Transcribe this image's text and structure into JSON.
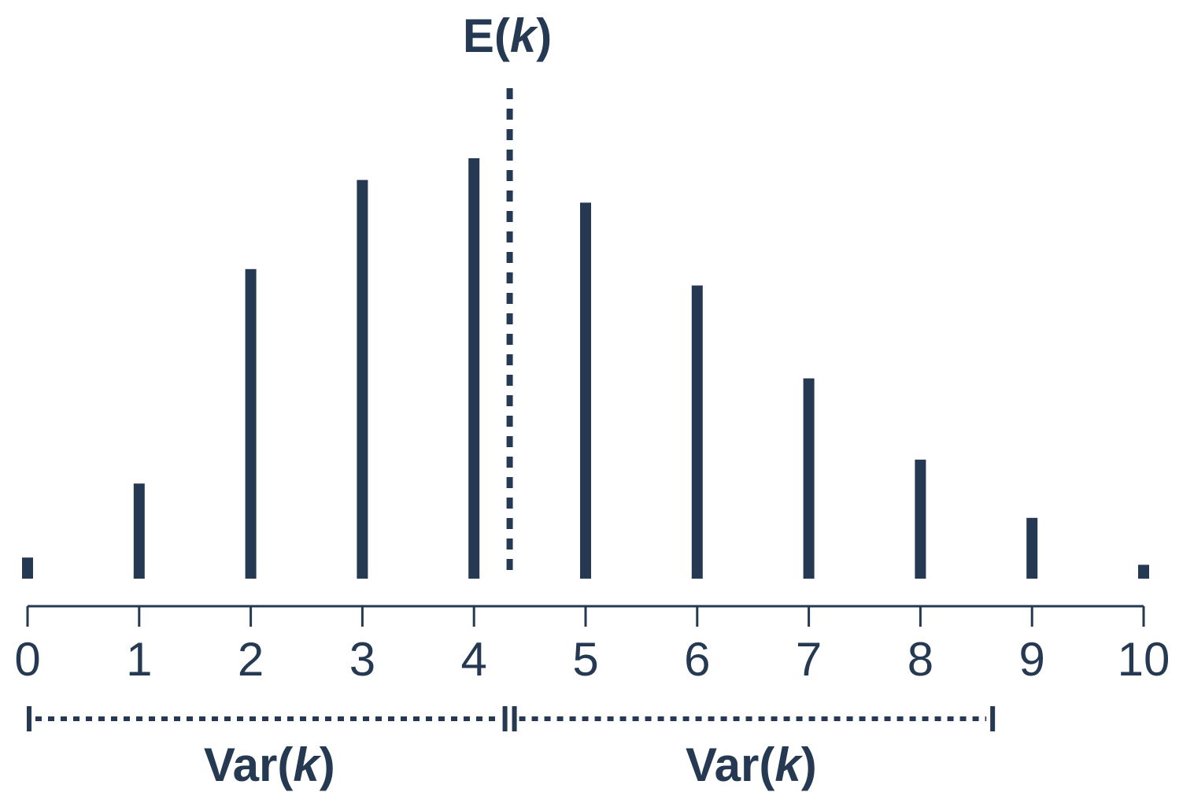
{
  "chart_data": {
    "type": "bar",
    "x": [
      0,
      1,
      2,
      3,
      4,
      5,
      6,
      7,
      8,
      9,
      10
    ],
    "tick_labels": [
      "0",
      "1",
      "2",
      "3",
      "4",
      "5",
      "6",
      "7",
      "8",
      "9",
      "10"
    ],
    "values": [
      0.0067,
      0.0302,
      0.0983,
      0.1266,
      0.1335,
      0.1194,
      0.0931,
      0.0636,
      0.0378,
      0.0193,
      0.0044
    ],
    "xlim": [
      0,
      10
    ],
    "ylim": [
      0,
      0.16
    ],
    "mean": 4.32,
    "variance_span": [
      0,
      8.64
    ],
    "grid": false,
    "legend": "none",
    "annotations": {
      "mean_label": {
        "prefix": "E(",
        "var": "k",
        "suffix": ")"
      },
      "variance_label_left": {
        "prefix": "Var(",
        "var": "k",
        "suffix": ")"
      },
      "variance_label_right": {
        "prefix": "Var(",
        "var": "k",
        "suffix": ")"
      }
    },
    "colors": {
      "ink": "#253a52"
    }
  }
}
